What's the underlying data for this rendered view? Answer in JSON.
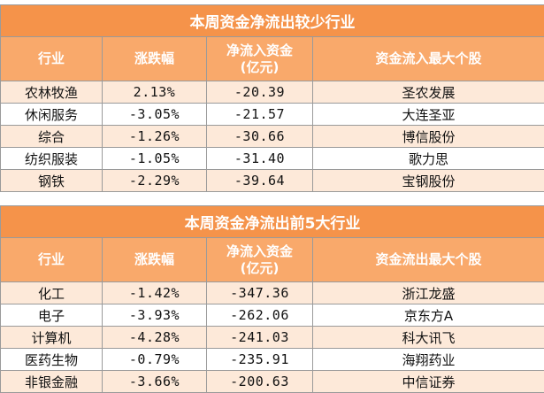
{
  "table1": {
    "title": "本周资金净流出较少行业",
    "headers": {
      "industry": "行业",
      "change": "涨跌幅",
      "flow_line1": "净流入资金",
      "flow_line2": "(亿元)",
      "stock": "资金流入最大个股"
    },
    "rows": [
      {
        "industry": "农林牧渔",
        "change": "2.13%",
        "flow": "-20.39",
        "stock": "圣农发展"
      },
      {
        "industry": "休闲服务",
        "change": "-3.05%",
        "flow": "-21.57",
        "stock": "大连圣亚"
      },
      {
        "industry": "综合",
        "change": "-1.26%",
        "flow": "-30.66",
        "stock": "博信股份"
      },
      {
        "industry": "纺织服装",
        "change": "-1.05%",
        "flow": "-31.40",
        "stock": "歌力思"
      },
      {
        "industry": "钢铁",
        "change": "-2.29%",
        "flow": "-39.64",
        "stock": "宝钢股份"
      }
    ]
  },
  "table2": {
    "title": "本周资金净流出前5大行业",
    "headers": {
      "industry": "行业",
      "change": "涨跌幅",
      "flow_line1": "净流入资金",
      "flow_line2": "(亿元)",
      "stock": "资金流出最大个股"
    },
    "rows": [
      {
        "industry": "化工",
        "change": "-1.42%",
        "flow": "-347.36",
        "stock": "浙江龙盛"
      },
      {
        "industry": "电子",
        "change": "-3.93%",
        "flow": "-262.06",
        "stock": "京东方A"
      },
      {
        "industry": "计算机",
        "change": "-4.28%",
        "flow": "-241.03",
        "stock": "科大讯飞"
      },
      {
        "industry": "医药生物",
        "change": "-0.79%",
        "flow": "-235.91",
        "stock": "海翔药业"
      },
      {
        "industry": "非银金融",
        "change": "-3.66%",
        "flow": "-200.63",
        "stock": "中信证券"
      }
    ]
  },
  "colors": {
    "title_bg": "#f5934a",
    "header_bg": "#f9a96b",
    "stripe_bg": "#fde9d9"
  }
}
